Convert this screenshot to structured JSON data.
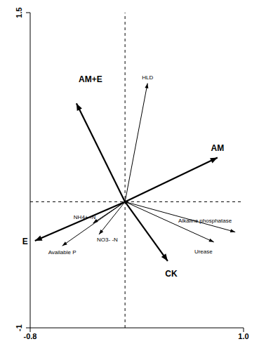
{
  "chart_data": {
    "type": "biplot",
    "xlim": [
      -0.8,
      1.0
    ],
    "ylim": [
      -1.0,
      1.5
    ],
    "xticks": [
      -0.8,
      1.0
    ],
    "yticks": [
      -1.0,
      1.5
    ],
    "grid": false,
    "vectors": [
      {
        "name": "HLD",
        "x": 0.19,
        "y": 0.94,
        "line_style": "thin"
      },
      {
        "name": "AM+E",
        "x": -0.41,
        "y": 0.78,
        "line_style": "bold"
      },
      {
        "name": "AM",
        "x": 0.78,
        "y": 0.35,
        "line_style": "bold"
      },
      {
        "name": "E",
        "x": -0.76,
        "y": -0.31,
        "line_style": "bold"
      },
      {
        "name": "CK",
        "x": 0.36,
        "y": -0.47,
        "line_style": "bold"
      },
      {
        "name": "Alkaline phosphatase",
        "x": 0.93,
        "y": -0.24,
        "line_style": "thin"
      },
      {
        "name": "Urease",
        "x": 0.75,
        "y": -0.32,
        "line_style": "thin"
      },
      {
        "name": "NH4+ -N",
        "x": -0.27,
        "y": -0.17,
        "line_style": "thin"
      },
      {
        "name": "NO3- -N",
        "x": -0.22,
        "y": -0.26,
        "line_style": "thin"
      },
      {
        "name": "Available P",
        "x": -0.53,
        "y": -0.35,
        "line_style": "thin"
      }
    ]
  }
}
